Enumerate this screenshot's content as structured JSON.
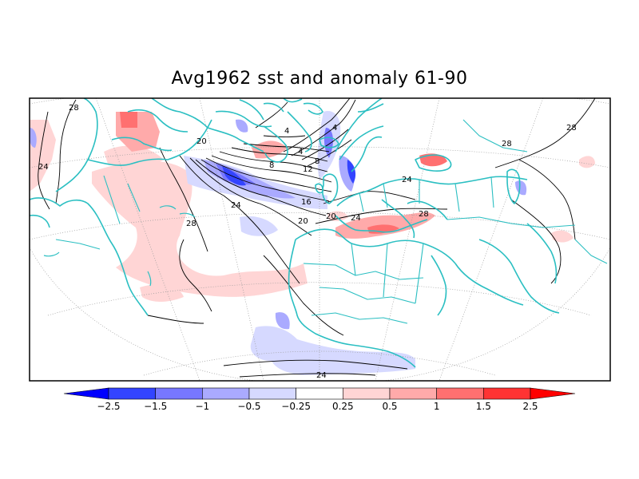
{
  "title": "Avg1962 sst and anomaly 61-90",
  "colors": {
    "coast": "#2bbfc2",
    "grid": "#9a9a9a",
    "neg_strong": "#3344ff",
    "neg_mid": "#7777ff",
    "neg_weak": "#aaaaff",
    "neg_faint": "#d6d9ff",
    "pos_faint": "#ffd5d5",
    "pos_weak": "#ffaaaa",
    "pos_mid": "#ff7070",
    "pos_strong": "#ff3333"
  },
  "contour_labels": [
    "28",
    "24",
    "28",
    "20",
    "24",
    "4",
    "8",
    "12",
    "16",
    "20",
    "8",
    "4",
    "4",
    "20",
    "24",
    "24",
    "28",
    "28",
    "24"
  ],
  "colorbar": {
    "levels": [
      "-2.5",
      "-1.5",
      "-1",
      "-0.5",
      "-0.25",
      "0.25",
      "0.5",
      "1",
      "1.5",
      "2.5"
    ],
    "colors": [
      "#0000ff",
      "#3344ff",
      "#7777ff",
      "#aaaaff",
      "#d6d9ff",
      "#ffffff",
      "#ffd5d5",
      "#ffaaaa",
      "#ff7070",
      "#ff3333",
      "#ff0000"
    ]
  }
}
